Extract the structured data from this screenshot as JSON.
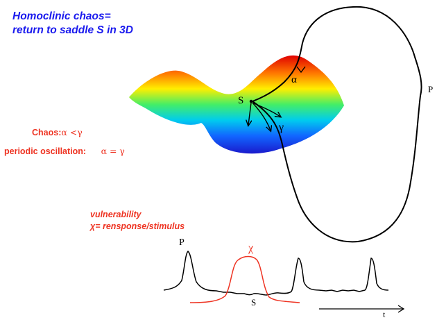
{
  "title": {
    "line1": "Homoclinic chaos=",
    "line2": "return to saddle S in 3D"
  },
  "conditions": {
    "chaos_label": "Chaos:",
    "chaos_relation": "α <γ",
    "periodic_label": "periodic oscillation:",
    "periodic_relation": "α = γ"
  },
  "diagram_labels": {
    "saddle": "S",
    "alpha": "α",
    "gamma": "γ",
    "orbit_point": "P"
  },
  "vulnerability": {
    "title": "vulnerability",
    "definition": "χ= rensponse/stimulus"
  },
  "timeseries_labels": {
    "peak": "P",
    "chi": "χ",
    "saddle": "S",
    "time": "t"
  },
  "colors": {
    "title": "#1a1aee",
    "annotation": "#ee3322",
    "curve": "#000000",
    "response": "#ee3322"
  }
}
